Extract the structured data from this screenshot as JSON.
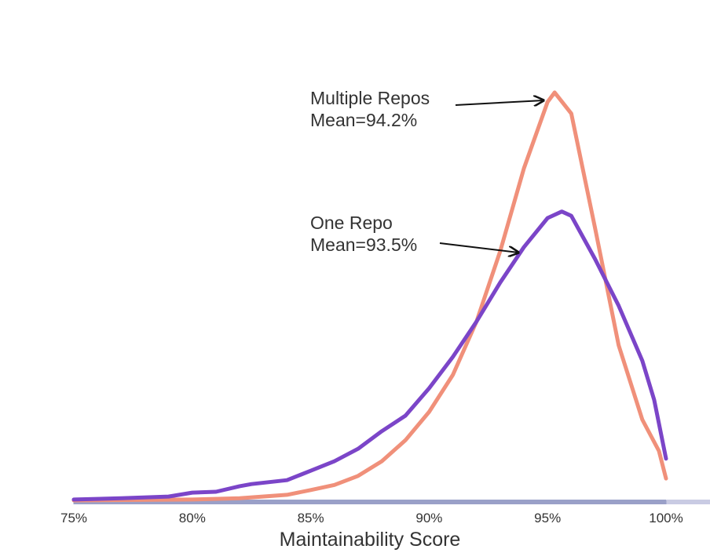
{
  "chart_data": {
    "type": "line",
    "xlabel": "Maintainability Score",
    "xlim": [
      75,
      100
    ],
    "ylim": [
      0,
      100
    ],
    "xticks": [
      {
        "value": 75,
        "label": "75%"
      },
      {
        "value": 80,
        "label": "80%"
      },
      {
        "value": 85,
        "label": "85%"
      },
      {
        "value": 90,
        "label": "90%"
      },
      {
        "value": 95,
        "label": "95%"
      },
      {
        "value": 100,
        "label": "100%"
      }
    ],
    "series": [
      {
        "name": "Multiple Repos",
        "color": "#f0907a",
        "x": [
          75,
          80,
          82,
          84,
          85,
          86,
          87,
          88,
          89,
          90,
          91,
          92,
          93,
          94,
          95,
          95.3,
          96,
          97,
          98,
          99,
          99.7,
          100
        ],
        "values": [
          0,
          0.2,
          0.5,
          1.3,
          2.4,
          3.6,
          5.7,
          9.1,
          14,
          20.6,
          29.2,
          41.6,
          58,
          77.2,
          92.7,
          94.9,
          90,
          63.5,
          36.1,
          18.8,
          11.5,
          5.1
        ]
      },
      {
        "name": "One Repo",
        "color": "#7b45c8",
        "x": [
          75,
          77,
          79,
          80,
          81,
          82,
          82.5,
          84,
          85,
          86,
          87,
          88,
          89,
          90,
          91,
          92,
          93,
          94,
          95,
          95.6,
          96,
          97,
          98,
          99,
          99.5,
          100
        ],
        "values": [
          0.2,
          0.5,
          0.9,
          1.8,
          2,
          3.3,
          3.8,
          4.7,
          6.9,
          9.1,
          12,
          16.1,
          19.7,
          26.1,
          33.4,
          41.6,
          50.7,
          58.9,
          65.7,
          67.2,
          66.2,
          56.2,
          45.3,
          32.5,
          23.4,
          9.7
        ]
      }
    ],
    "annotations": [
      {
        "lines": [
          "Multiple Repos",
          "Mean=94.2%"
        ]
      },
      {
        "lines": [
          "One Repo",
          "Mean=93.5%"
        ]
      }
    ]
  }
}
